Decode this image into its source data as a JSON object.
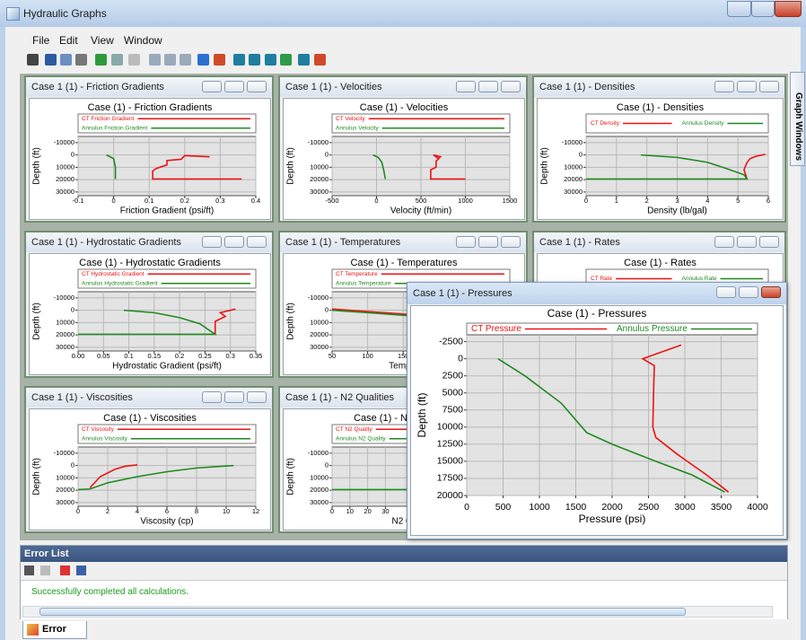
{
  "window": {
    "title": "Hydraulic Graphs"
  },
  "menu": [
    "File",
    "Edit",
    "View",
    "Window"
  ],
  "side_tab": "Graph Windows",
  "graph_windows": [
    {
      "caption": "Case 1 (1) - Friction Gradients",
      "chart": {
        "type": "line",
        "title": "Case (1) - Friction Gradients",
        "legend_layout": "stacked",
        "xlabel": "Friction Gradient (psi/ft)",
        "ylabel": "Depth (ft)",
        "y_inverted": true,
        "grid": true,
        "xlim": [
          -0.1,
          0.4
        ],
        "xticks": [
          -0.1,
          0,
          0.1,
          0.2,
          0.3,
          0.4
        ],
        "ylim": [
          -15000,
          33000
        ],
        "yticks": [
          -10000,
          0,
          10000,
          20000,
          30000
        ],
        "series": [
          {
            "name": "CT Friction Gradient",
            "color": "#ee1111",
            "x": [
              0.27,
              0.2,
              0.19,
              0.15,
              0.15,
              0.12,
              0.11,
              0.11,
              0.36
            ],
            "y": [
              1500,
              500,
              3500,
              4500,
              8000,
              11000,
              13000,
              19500,
              19500
            ]
          },
          {
            "name": "Annulus Friction Gradient",
            "color": "#1f8a1f",
            "x": [
              -0.02,
              0,
              0.005,
              0.005
            ],
            "y": [
              0,
              3000,
              10000,
              19500
            ]
          }
        ]
      }
    },
    {
      "caption": "Case 1 (1) - Velocities",
      "chart": {
        "type": "line",
        "title": "Case (1) - Velocities",
        "legend_layout": "stacked",
        "xlabel": "Velocity (ft/min)",
        "ylabel": "Depth (ft)",
        "y_inverted": true,
        "grid": true,
        "xlim": [
          -500,
          1500
        ],
        "xticks": [
          -500,
          0,
          500,
          1000,
          1500
        ],
        "ylim": [
          -15000,
          33000
        ],
        "yticks": [
          -10000,
          0,
          10000,
          20000,
          30000
        ],
        "series": [
          {
            "name": "CT Velocity",
            "color": "#ee1111",
            "x": [
              700,
              640,
              720,
              670,
              670,
              610,
              610,
              1000
            ],
            "y": [
              3000,
              0,
              1500,
              5000,
              10000,
              12000,
              19500,
              19500
            ]
          },
          {
            "name": "Annulus Velocity",
            "color": "#1f8a1f",
            "x": [
              -40,
              20,
              60,
              80,
              100
            ],
            "y": [
              0,
              2000,
              6000,
              12000,
              19500
            ]
          }
        ]
      }
    },
    {
      "caption": "Case 1 (1) - Densities",
      "chart": {
        "type": "line",
        "title": "Case (1) - Densities",
        "legend_layout": "row",
        "xlabel": "Density (lb/gal)",
        "ylabel": "Depth (ft)",
        "y_inverted": true,
        "grid": true,
        "xlim": [
          0,
          6
        ],
        "xticks": [
          0,
          1,
          2,
          3,
          4,
          5,
          6
        ],
        "ylim": [
          -15000,
          33000
        ],
        "yticks": [
          -10000,
          0,
          10000,
          20000,
          30000
        ],
        "series": [
          {
            "name": "CT Density",
            "color": "#ee1111",
            "x": [
              5.9,
              5.6,
              5.4,
              5.3,
              5.2,
              5.3
            ],
            "y": [
              -500,
              1000,
              3000,
              6000,
              12000,
              19500
            ]
          },
          {
            "name": "Annulus Density",
            "color": "#1f8a1f",
            "x": [
              1.8,
              3,
              4,
              4.5,
              5.2,
              5.3,
              0
            ],
            "y": [
              0,
              2000,
              6000,
              10000,
              16000,
              19500,
              19500
            ]
          }
        ]
      }
    },
    {
      "caption": "Case 1 (1) - Hydrostatic Gradients",
      "chart": {
        "type": "line",
        "title": "Case (1) - Hydrostatic Gradients",
        "legend_layout": "stacked",
        "xlabel": "Hydrostatic Gradient (psi/ft)",
        "ylabel": "Depth (ft)",
        "y_inverted": true,
        "grid": true,
        "xlim": [
          0,
          0.35
        ],
        "xticks": [
          {
            "value": 0,
            "label": "0.00"
          },
          0.05,
          0.1,
          0.15,
          0.2,
          0.25,
          0.3,
          0.35
        ],
        "ylim": [
          -15000,
          33000
        ],
        "yticks": [
          -10000,
          0,
          10000,
          20000,
          30000
        ],
        "series": [
          {
            "name": "CT Hydrostatic Gradient",
            "color": "#ee1111",
            "x": [
              0.31,
              0.28,
              0.29,
              0.27,
              0.27,
              0.27
            ],
            "y": [
              -1000,
              2000,
              5000,
              9000,
              12000,
              19500
            ]
          },
          {
            "name": "Annulus Hydrostatic Gradient",
            "color": "#1f8a1f",
            "x": [
              0.09,
              0.15,
              0.2,
              0.24,
              0.27,
              0
            ],
            "y": [
              0,
              2000,
              6000,
              11000,
              19500,
              19500
            ]
          }
        ]
      }
    },
    {
      "caption": "Case 1 (1) - Temperatures",
      "chart": {
        "type": "line",
        "title": "Case (1) - Temperatures",
        "legend_layout": "stacked",
        "xlabel": "Temperature (F)",
        "ylabel": "Depth (ft)",
        "y_inverted": true,
        "grid": true,
        "xlim": [
          50,
          300
        ],
        "xticks": [
          50,
          100,
          150
        ],
        "ylim": [
          -15000,
          33000
        ],
        "yticks": [
          -10000,
          0,
          10000,
          20000,
          30000
        ],
        "series": [
          {
            "name": "CT Temperature",
            "color": "#ee1111",
            "x": [
              50,
              100,
              160
            ],
            "y": [
              -1000,
              1000,
              3500
            ]
          },
          {
            "name": "Annulus Temperature",
            "color": "#1f8a1f",
            "x": [
              50,
              100,
              160
            ],
            "y": [
              0,
              2000,
              4500
            ]
          }
        ]
      }
    },
    {
      "caption": "Case 1 (1) - Rates",
      "chart": {
        "type": "line",
        "title": "Case (1) - Rates",
        "legend_layout": "row",
        "series": [
          {
            "name": "CT Rate",
            "color": "#ee1111"
          },
          {
            "name": "Annulus Rate",
            "color": "#1f8a1f"
          }
        ]
      }
    },
    {
      "caption": "Case 1 (1) - Viscosities",
      "chart": {
        "type": "line",
        "title": "Case (1) - Viscosities",
        "legend_layout": "stacked",
        "xlabel": "Viscosity (cp)",
        "ylabel": "Depth (ft)",
        "y_inverted": true,
        "grid": true,
        "xlim": [
          0,
          12
        ],
        "xticks": [
          0,
          2,
          4,
          6,
          8,
          10,
          12
        ],
        "ylim": [
          -15000,
          33000
        ],
        "yticks": [
          -10000,
          0,
          10000,
          20000,
          30000
        ],
        "series": [
          {
            "name": "CT Viscosity",
            "color": "#ee1111",
            "x": [
              0.8,
              1.5,
              2.5,
              3.2,
              4
            ],
            "y": [
              18000,
              9000,
              3000,
              500,
              -500
            ]
          },
          {
            "name": "Annulus Viscosity",
            "color": "#1f8a1f",
            "x": [
              0,
              0.8,
              2,
              4,
              6,
              8,
              10.5
            ],
            "y": [
              19500,
              19000,
              14000,
              9000,
              5000,
              2000,
              0
            ]
          }
        ]
      }
    },
    {
      "caption": "Case 1 (1) - N2 Qualities",
      "chart": {
        "type": "line",
        "title": "Case (1) - N2 Qualities",
        "legend_layout": "stacked",
        "xlabel": "N2 Quality (%)",
        "ylabel": "Depth (ft)",
        "y_inverted": true,
        "grid": true,
        "xlim": [
          0,
          100
        ],
        "xticks": [
          0,
          10,
          20,
          30
        ],
        "ylim": [
          -15000,
          33000
        ],
        "yticks": [
          -10000,
          0,
          10000,
          20000,
          30000
        ],
        "series": [
          {
            "name": "CT N2 Quality",
            "color": "#ee1111"
          },
          {
            "name": "Annulus N2 Quality",
            "color": "#1f8a1f",
            "x": [
              0,
              50
            ],
            "y": [
              19500,
              19500
            ]
          }
        ]
      }
    },
    {
      "caption": "Case 1 (1) - Pressures",
      "chart": {
        "type": "line",
        "title": "Case (1) - Pressures",
        "legend_layout": "row",
        "xlabel": "Pressure (psi)",
        "ylabel": "Depth (ft)",
        "y_inverted": true,
        "grid": true,
        "xlim": [
          0,
          4000
        ],
        "xticks": [
          0,
          500,
          1000,
          1500,
          2000,
          2500,
          3000,
          3500,
          4000
        ],
        "ylim": [
          -3500,
          20000
        ],
        "yticks": [
          -2500,
          0,
          2500,
          5000,
          7500,
          10000,
          12500,
          15000,
          17500,
          20000
        ],
        "series": [
          {
            "name": "CT Pressure",
            "color": "#ee1111",
            "x": [
              2950,
              2420,
              2580,
              2570,
              2560,
              2600,
              2900,
              3300,
              3600
            ],
            "y": [
              -2000,
              0,
              1000,
              5000,
              10000,
              11500,
              14000,
              17000,
              19500
            ]
          },
          {
            "name": "Annulus Pressure",
            "color": "#1f8a1f",
            "x": [
              430,
              800,
              1300,
              1650,
              2000,
              2600,
              3100,
              3550
            ],
            "y": [
              0,
              2500,
              6500,
              10800,
              12500,
              15000,
              17000,
              19500
            ]
          }
        ]
      }
    }
  ],
  "error_list": {
    "title": "Error List",
    "messages": [
      "Successfully completed all calculations."
    ],
    "tab": "Error List"
  }
}
